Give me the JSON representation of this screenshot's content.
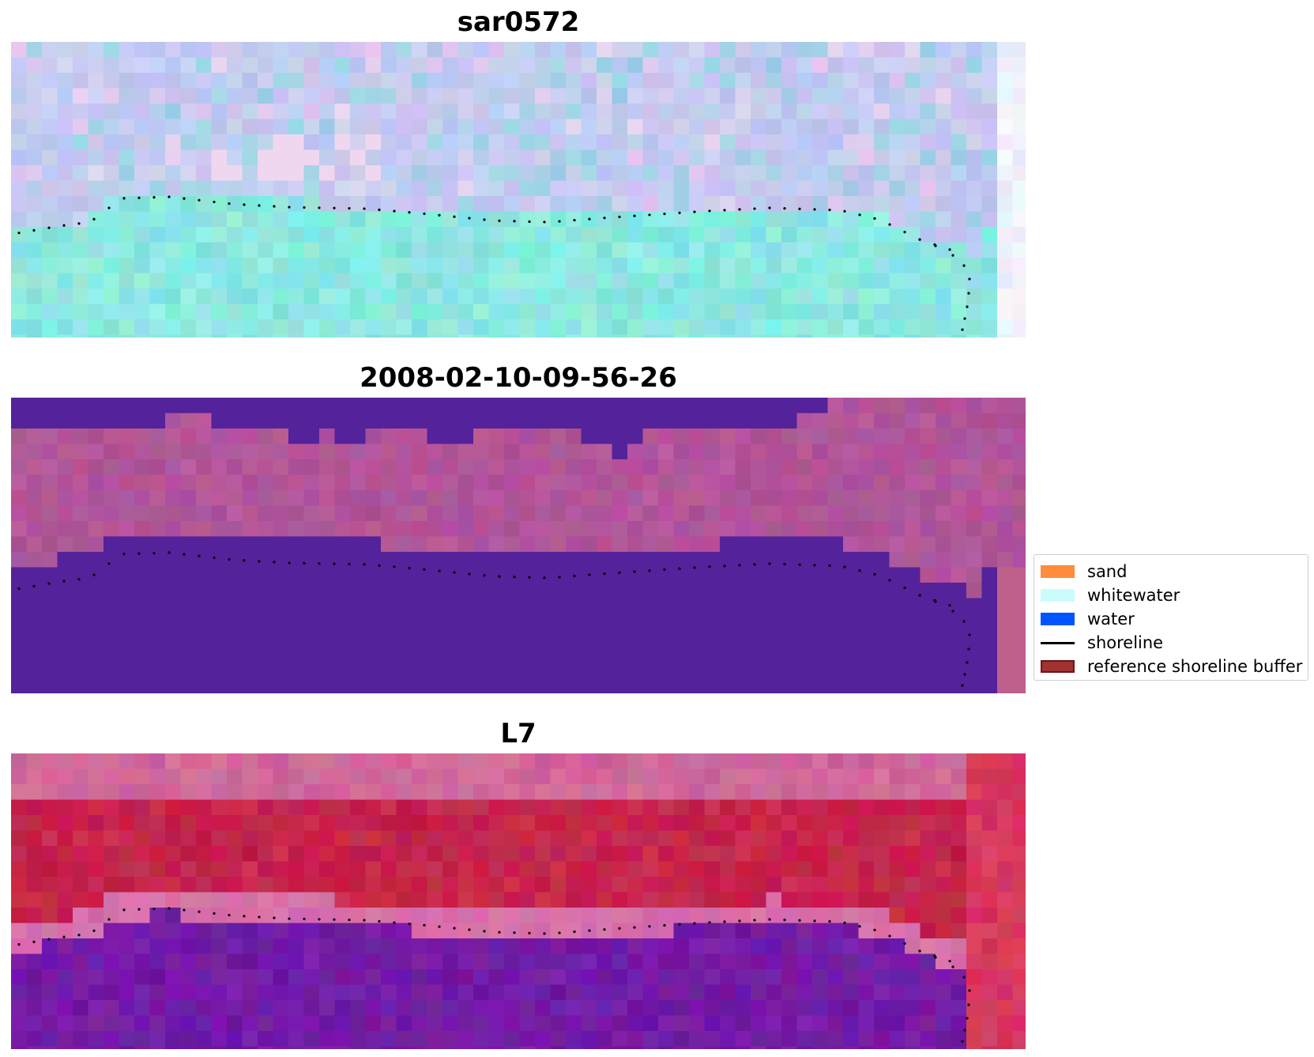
{
  "panels": [
    {
      "title": "sar0572",
      "style": "sar"
    },
    {
      "title": "2008-02-10-09-56-26",
      "style": "classified"
    },
    {
      "title": "L7",
      "style": "optical"
    }
  ],
  "legend": {
    "items": [
      {
        "label": "sand",
        "type": "patch",
        "color": "#ff8c3c"
      },
      {
        "label": "whitewater",
        "type": "patch",
        "color": "#cbfcfc"
      },
      {
        "label": "water",
        "type": "patch",
        "color": "#0055ff"
      },
      {
        "label": "shoreline",
        "type": "line",
        "color": "#000000"
      },
      {
        "label": "reference shoreline buffer",
        "type": "patch",
        "color": "#a03232",
        "edge": "#6e1414"
      }
    ]
  },
  "colors": {
    "water_class": "#54229a",
    "shoreline": "#000000"
  }
}
